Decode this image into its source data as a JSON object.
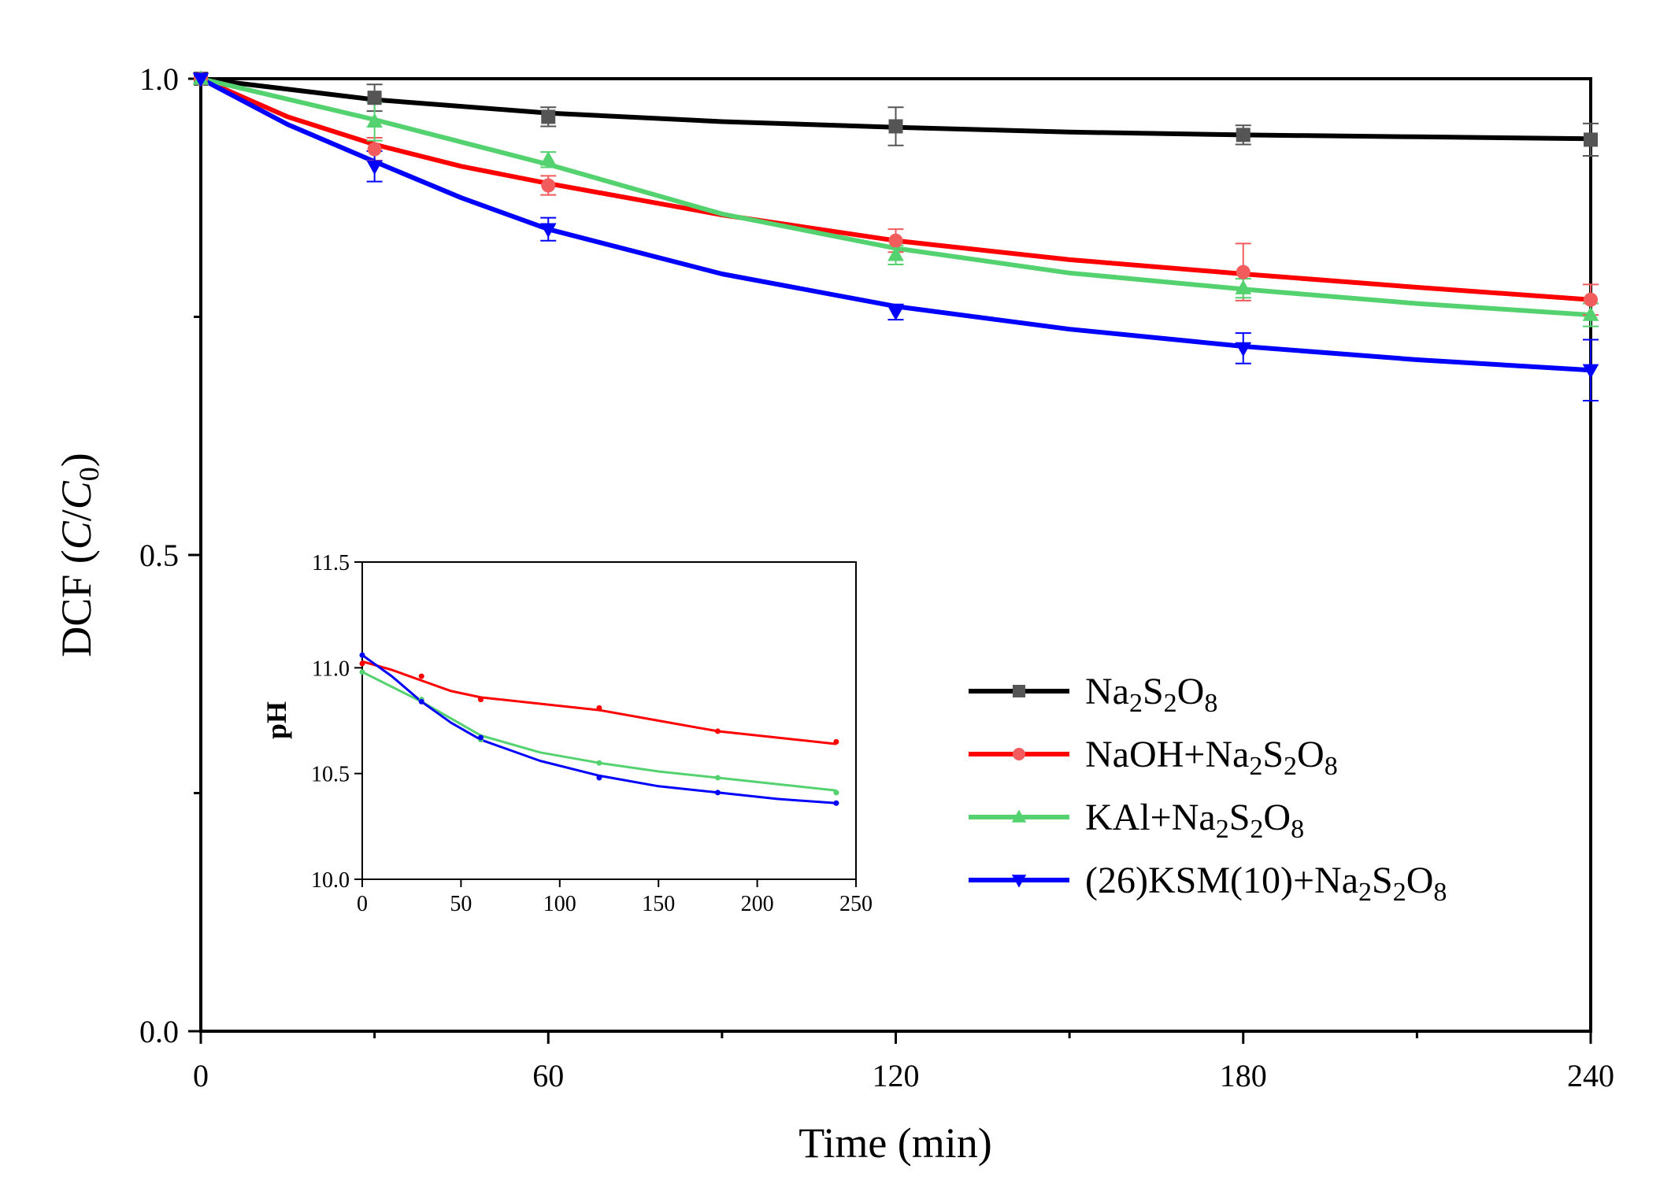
{
  "chart_data": [
    {
      "type": "line",
      "title": "",
      "xlabel": "Time (min)",
      "ylabel": "DCF (C/C0)",
      "ylabel_parts": {
        "prefix": "DCF (",
        "var1": "C",
        "slash": "/",
        "var2": "C",
        "sub": "0",
        "suffix": ")"
      },
      "xlim": [
        0,
        240
      ],
      "ylim": [
        0.0,
        1.0
      ],
      "xticks": [
        "0",
        "60",
        "120",
        "180",
        "240"
      ],
      "yticks": [
        "0.0",
        "0.5",
        "1.0"
      ],
      "legend": "center-right",
      "series": [
        {
          "name": "Na2S2O8",
          "label_parts": [
            "Na",
            "2",
            "S",
            "2",
            "O",
            "8"
          ],
          "color": "#000000",
          "marker_color": "#555555",
          "marker": "square",
          "x": [
            0,
            30,
            60,
            120,
            180,
            240
          ],
          "values": [
            1.0,
            0.98,
            0.96,
            0.95,
            0.941,
            0.936
          ],
          "error": [
            0,
            0.014,
            0.01,
            0.02,
            0.01,
            0.017
          ],
          "fit_x": [
            0,
            30,
            60,
            90,
            120,
            150,
            180,
            210,
            240
          ],
          "fit_values": [
            1.0,
            0.978,
            0.964,
            0.955,
            0.949,
            0.944,
            0.941,
            0.939,
            0.937
          ]
        },
        {
          "name": "NaOH+Na2S2O8",
          "label_parts": [
            "NaOH+Na",
            "2",
            "S",
            "2",
            "O",
            "8"
          ],
          "color": "#ff0000",
          "marker_color": "#f25c5c",
          "marker": "circle",
          "x": [
            0,
            30,
            60,
            120,
            180,
            240
          ],
          "values": [
            1.0,
            0.926,
            0.888,
            0.83,
            0.797,
            0.768
          ],
          "error": [
            0,
            0.012,
            0.01,
            0.012,
            0.03,
            0.016
          ],
          "fit_x": [
            0,
            15,
            30,
            45,
            60,
            90,
            120,
            150,
            180,
            210,
            240
          ],
          "fit_values": [
            1.0,
            0.96,
            0.931,
            0.908,
            0.89,
            0.857,
            0.83,
            0.81,
            0.795,
            0.781,
            0.768
          ]
        },
        {
          "name": "KAl+Na2S2O8",
          "label_parts": [
            "KAl+Na",
            "2",
            "S",
            "2",
            "O",
            "8"
          ],
          "color": "#55d270",
          "marker_color": "#55d270",
          "marker": "triangle-up",
          "x": [
            0,
            30,
            60,
            120,
            180,
            240
          ],
          "values": [
            1.0,
            0.955,
            0.915,
            0.815,
            0.78,
            0.752
          ],
          "error": [
            0,
            0.02,
            0.008,
            0.01,
            0.01,
            0.012
          ],
          "fit_x": [
            0,
            30,
            60,
            90,
            120,
            150,
            180,
            210,
            240
          ],
          "fit_values": [
            1.0,
            0.957,
            0.91,
            0.858,
            0.822,
            0.796,
            0.779,
            0.764,
            0.752
          ]
        },
        {
          "name": "(26)KSM(10)+Na2S2O8",
          "label_parts": [
            "(26)KSM(10)+Na",
            "2",
            "S",
            "2",
            "O",
            "8"
          ],
          "color": "#0000ff",
          "marker_color": "#0000ff",
          "marker": "triangle-down",
          "x": [
            0,
            30,
            60,
            120,
            180,
            240
          ],
          "values": [
            1.0,
            0.908,
            0.842,
            0.755,
            0.717,
            0.694
          ],
          "error": [
            0,
            0.016,
            0.012,
            0.008,
            0.016,
            0.032
          ],
          "fit_x": [
            0,
            15,
            30,
            45,
            60,
            90,
            120,
            150,
            180,
            210,
            240
          ],
          "fit_values": [
            1.0,
            0.952,
            0.913,
            0.875,
            0.842,
            0.795,
            0.761,
            0.737,
            0.719,
            0.705,
            0.694
          ]
        }
      ]
    },
    {
      "type": "line",
      "title": "",
      "xlabel": "",
      "ylabel": "pH",
      "xlim": [
        0,
        250
      ],
      "ylim": [
        10.0,
        11.5
      ],
      "xticks": [
        "0",
        "50",
        "100",
        "150",
        "200",
        "250"
      ],
      "yticks": [
        "10.0",
        "10.5",
        "11.0",
        "11.5"
      ],
      "series": [
        {
          "name": "NaOH+Na2S2O8",
          "color": "#ff0000",
          "x": [
            0,
            30,
            60,
            120,
            180,
            240
          ],
          "values": [
            11.02,
            10.96,
            10.85,
            10.81,
            10.7,
            10.65
          ],
          "fit_x": [
            0,
            15,
            30,
            45,
            60,
            90,
            120,
            150,
            180,
            210,
            240
          ],
          "fit_values": [
            11.03,
            10.99,
            10.94,
            10.89,
            10.86,
            10.83,
            10.8,
            10.75,
            10.7,
            10.67,
            10.64
          ]
        },
        {
          "name": "KAl+Na2S2O8",
          "color": "#55d270",
          "x": [
            0,
            30,
            60,
            120,
            180,
            240
          ],
          "values": [
            10.98,
            10.85,
            10.66,
            10.55,
            10.48,
            10.41
          ],
          "fit_x": [
            0,
            15,
            30,
            45,
            60,
            90,
            120,
            150,
            180,
            210,
            240
          ],
          "fit_values": [
            10.98,
            10.91,
            10.84,
            10.76,
            10.68,
            10.6,
            10.55,
            10.51,
            10.48,
            10.45,
            10.42
          ]
        },
        {
          "name": "(26)KSM(10)+Na2S2O8",
          "color": "#0000ff",
          "x": [
            0,
            30,
            60,
            120,
            180,
            240
          ],
          "values": [
            11.06,
            10.84,
            10.67,
            10.48,
            10.41,
            10.36
          ],
          "fit_x": [
            0,
            15,
            30,
            45,
            60,
            90,
            120,
            150,
            180,
            210,
            240
          ],
          "fit_values": [
            11.06,
            10.96,
            10.84,
            10.74,
            10.66,
            10.56,
            10.49,
            10.44,
            10.41,
            10.38,
            10.36
          ]
        }
      ]
    }
  ]
}
